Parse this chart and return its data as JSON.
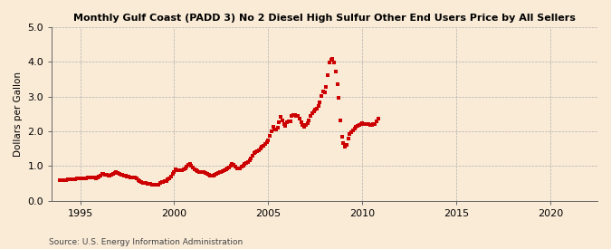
{
  "title": "Monthly Gulf Coast (PADD 3) No 2 Diesel High Sulfur Other End Users Price by All Sellers",
  "ylabel": "Dollars per Gallon",
  "source": "Source: U.S. Energy Information Administration",
  "background_color": "#faebd7",
  "line_color": "#cc0000",
  "marker": "s",
  "markersize": 2.2,
  "linewidth": 0.0,
  "xlim_left": 1993.5,
  "xlim_right": 2022.5,
  "ylim_bottom": 0.0,
  "ylim_top": 5.0,
  "yticks": [
    0.0,
    1.0,
    2.0,
    3.0,
    4.0,
    5.0
  ],
  "xticks": [
    1995,
    2000,
    2005,
    2010,
    2015,
    2020
  ],
  "data": [
    [
      1993.917,
      0.597
    ],
    [
      1994.0,
      0.591
    ],
    [
      1994.083,
      0.584
    ],
    [
      1994.167,
      0.59
    ],
    [
      1994.25,
      0.601
    ],
    [
      1994.333,
      0.614
    ],
    [
      1994.417,
      0.616
    ],
    [
      1994.5,
      0.618
    ],
    [
      1994.583,
      0.623
    ],
    [
      1994.667,
      0.617
    ],
    [
      1994.75,
      0.626
    ],
    [
      1994.833,
      0.644
    ],
    [
      1994.917,
      0.654
    ],
    [
      1995.0,
      0.645
    ],
    [
      1995.083,
      0.633
    ],
    [
      1995.167,
      0.637
    ],
    [
      1995.25,
      0.648
    ],
    [
      1995.333,
      0.652
    ],
    [
      1995.417,
      0.666
    ],
    [
      1995.5,
      0.664
    ],
    [
      1995.583,
      0.667
    ],
    [
      1995.667,
      0.669
    ],
    [
      1995.75,
      0.66
    ],
    [
      1995.833,
      0.649
    ],
    [
      1995.917,
      0.668
    ],
    [
      1996.0,
      0.701
    ],
    [
      1996.083,
      0.732
    ],
    [
      1996.167,
      0.762
    ],
    [
      1996.25,
      0.769
    ],
    [
      1996.333,
      0.758
    ],
    [
      1996.417,
      0.745
    ],
    [
      1996.5,
      0.722
    ],
    [
      1996.583,
      0.725
    ],
    [
      1996.667,
      0.747
    ],
    [
      1996.75,
      0.768
    ],
    [
      1996.833,
      0.8
    ],
    [
      1996.917,
      0.82
    ],
    [
      1997.0,
      0.79
    ],
    [
      1997.083,
      0.762
    ],
    [
      1997.167,
      0.741
    ],
    [
      1997.25,
      0.739
    ],
    [
      1997.333,
      0.731
    ],
    [
      1997.417,
      0.721
    ],
    [
      1997.5,
      0.706
    ],
    [
      1997.583,
      0.69
    ],
    [
      1997.667,
      0.676
    ],
    [
      1997.75,
      0.673
    ],
    [
      1997.833,
      0.673
    ],
    [
      1997.917,
      0.672
    ],
    [
      1998.0,
      0.639
    ],
    [
      1998.083,
      0.604
    ],
    [
      1998.167,
      0.567
    ],
    [
      1998.25,
      0.541
    ],
    [
      1998.333,
      0.524
    ],
    [
      1998.417,
      0.516
    ],
    [
      1998.5,
      0.511
    ],
    [
      1998.583,
      0.498
    ],
    [
      1998.667,
      0.493
    ],
    [
      1998.75,
      0.484
    ],
    [
      1998.833,
      0.474
    ],
    [
      1998.917,
      0.467
    ],
    [
      1999.0,
      0.459
    ],
    [
      1999.083,
      0.456
    ],
    [
      1999.167,
      0.473
    ],
    [
      1999.25,
      0.505
    ],
    [
      1999.333,
      0.535
    ],
    [
      1999.417,
      0.553
    ],
    [
      1999.5,
      0.558
    ],
    [
      1999.583,
      0.573
    ],
    [
      1999.667,
      0.608
    ],
    [
      1999.75,
      0.65
    ],
    [
      1999.833,
      0.703
    ],
    [
      1999.917,
      0.762
    ],
    [
      2000.0,
      0.832
    ],
    [
      2000.083,
      0.893
    ],
    [
      2000.167,
      0.89
    ],
    [
      2000.25,
      0.869
    ],
    [
      2000.333,
      0.874
    ],
    [
      2000.417,
      0.89
    ],
    [
      2000.5,
      0.905
    ],
    [
      2000.583,
      0.934
    ],
    [
      2000.667,
      0.971
    ],
    [
      2000.75,
      1.036
    ],
    [
      2000.833,
      1.064
    ],
    [
      2000.917,
      1.01
    ],
    [
      2001.0,
      0.968
    ],
    [
      2001.083,
      0.913
    ],
    [
      2001.167,
      0.867
    ],
    [
      2001.25,
      0.844
    ],
    [
      2001.333,
      0.827
    ],
    [
      2001.417,
      0.832
    ],
    [
      2001.5,
      0.831
    ],
    [
      2001.583,
      0.826
    ],
    [
      2001.667,
      0.793
    ],
    [
      2001.75,
      0.765
    ],
    [
      2001.833,
      0.74
    ],
    [
      2001.917,
      0.72
    ],
    [
      2002.0,
      0.71
    ],
    [
      2002.083,
      0.714
    ],
    [
      2002.167,
      0.742
    ],
    [
      2002.25,
      0.772
    ],
    [
      2002.333,
      0.802
    ],
    [
      2002.417,
      0.831
    ],
    [
      2002.5,
      0.839
    ],
    [
      2002.583,
      0.848
    ],
    [
      2002.667,
      0.869
    ],
    [
      2002.75,
      0.898
    ],
    [
      2002.833,
      0.937
    ],
    [
      2002.917,
      0.959
    ],
    [
      2003.0,
      1.001
    ],
    [
      2003.083,
      1.06
    ],
    [
      2003.167,
      1.039
    ],
    [
      2003.25,
      0.975
    ],
    [
      2003.333,
      0.936
    ],
    [
      2003.417,
      0.924
    ],
    [
      2003.5,
      0.942
    ],
    [
      2003.583,
      0.972
    ],
    [
      2003.667,
      1.009
    ],
    [
      2003.75,
      1.049
    ],
    [
      2003.833,
      1.08
    ],
    [
      2003.917,
      1.107
    ],
    [
      2004.0,
      1.165
    ],
    [
      2004.083,
      1.225
    ],
    [
      2004.167,
      1.299
    ],
    [
      2004.25,
      1.372
    ],
    [
      2004.333,
      1.401
    ],
    [
      2004.417,
      1.43
    ],
    [
      2004.5,
      1.452
    ],
    [
      2004.583,
      1.496
    ],
    [
      2004.667,
      1.556
    ],
    [
      2004.75,
      1.596
    ],
    [
      2004.833,
      1.637
    ],
    [
      2004.917,
      1.679
    ],
    [
      2005.0,
      1.742
    ],
    [
      2005.083,
      1.861
    ],
    [
      2005.167,
      2.009
    ],
    [
      2005.25,
      2.142
    ],
    [
      2005.333,
      2.064
    ],
    [
      2005.417,
      2.04
    ],
    [
      2005.5,
      2.1
    ],
    [
      2005.583,
      2.266
    ],
    [
      2005.667,
      2.43
    ],
    [
      2005.75,
      2.312
    ],
    [
      2005.833,
      2.196
    ],
    [
      2005.917,
      2.151
    ],
    [
      2006.0,
      2.266
    ],
    [
      2006.083,
      2.281
    ],
    [
      2006.167,
      2.282
    ],
    [
      2006.25,
      2.453
    ],
    [
      2006.333,
      2.458
    ],
    [
      2006.417,
      2.468
    ],
    [
      2006.5,
      2.436
    ],
    [
      2006.583,
      2.433
    ],
    [
      2006.667,
      2.363
    ],
    [
      2006.75,
      2.265
    ],
    [
      2006.833,
      2.176
    ],
    [
      2006.917,
      2.141
    ],
    [
      2007.0,
      2.191
    ],
    [
      2007.083,
      2.231
    ],
    [
      2007.167,
      2.318
    ],
    [
      2007.25,
      2.449
    ],
    [
      2007.333,
      2.516
    ],
    [
      2007.417,
      2.571
    ],
    [
      2007.5,
      2.617
    ],
    [
      2007.583,
      2.661
    ],
    [
      2007.667,
      2.738
    ],
    [
      2007.75,
      2.847
    ],
    [
      2007.833,
      3.02
    ],
    [
      2007.917,
      3.143
    ],
    [
      2008.0,
      3.118
    ],
    [
      2008.083,
      3.276
    ],
    [
      2008.167,
      3.607
    ],
    [
      2008.25,
      3.977
    ],
    [
      2008.333,
      4.056
    ],
    [
      2008.417,
      4.089
    ],
    [
      2008.5,
      3.994
    ],
    [
      2008.583,
      3.734
    ],
    [
      2008.667,
      3.367
    ],
    [
      2008.75,
      2.965
    ],
    [
      2008.833,
      2.315
    ],
    [
      2008.917,
      1.855
    ],
    [
      2009.0,
      1.651
    ],
    [
      2009.083,
      1.559
    ],
    [
      2009.167,
      1.622
    ],
    [
      2009.25,
      1.793
    ],
    [
      2009.333,
      1.91
    ],
    [
      2009.417,
      1.98
    ],
    [
      2009.5,
      2.021
    ],
    [
      2009.583,
      2.083
    ],
    [
      2009.667,
      2.126
    ],
    [
      2009.75,
      2.167
    ],
    [
      2009.833,
      2.181
    ],
    [
      2009.917,
      2.217
    ],
    [
      2010.0,
      2.225
    ],
    [
      2010.083,
      2.198
    ],
    [
      2010.167,
      2.211
    ],
    [
      2010.25,
      2.207
    ],
    [
      2010.333,
      2.199
    ],
    [
      2010.417,
      2.189
    ],
    [
      2010.5,
      2.188
    ],
    [
      2010.583,
      2.205
    ],
    [
      2010.667,
      2.21
    ],
    [
      2010.75,
      2.28
    ],
    [
      2010.833,
      2.358
    ]
  ]
}
